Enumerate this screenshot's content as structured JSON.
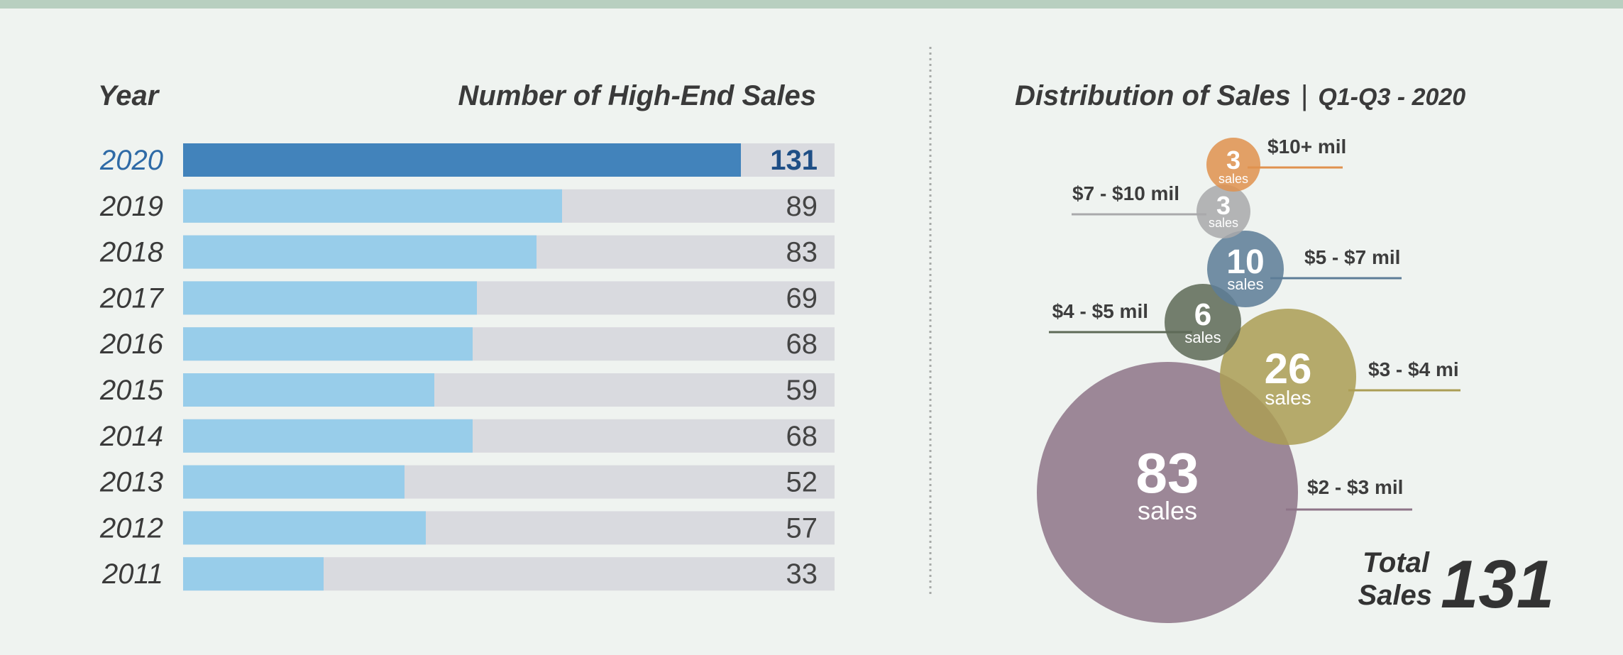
{
  "bar_panel": {
    "year_header": "Year",
    "value_header": "Number of High-End Sales"
  },
  "dist_panel": {
    "title": "Distribution of Sales",
    "separator": "|",
    "period": "Q1-Q3 - 2020",
    "unit": "sales"
  },
  "total": {
    "label_line1": "Total",
    "label_line2": "Sales",
    "value": "131"
  },
  "colors": {
    "highlight_bar": "#4283bb",
    "bar": "#98cdea",
    "track": "#d9dadf",
    "highlight_text": "#2e6aa6",
    "value_highlight": "#1f4f86",
    "text": "#3a3a3a"
  },
  "chart_data": [
    {
      "type": "bar",
      "orientation": "horizontal",
      "categories": [
        "2020",
        "2019",
        "2018",
        "2017",
        "2016",
        "2015",
        "2014",
        "2013",
        "2012",
        "2011"
      ],
      "values": [
        131,
        89,
        83,
        69,
        68,
        59,
        68,
        52,
        57,
        33
      ],
      "value_labels": [
        "131",
        "89",
        "83",
        "69",
        "68",
        "59",
        "68",
        "52",
        "57",
        "33"
      ],
      "highlight": "2020",
      "xlabel": "Number of High-End Sales",
      "ylabel": "Year",
      "xlim": [
        0,
        153
      ],
      "grid": false
    },
    {
      "type": "bubble",
      "bubbles": [
        {
          "range": "$10+ mil",
          "count": 3,
          "count_label": "3",
          "color": "#e0924f"
        },
        {
          "range": "$7 - $10 mil",
          "count": 3,
          "count_label": "3",
          "color": "#a9a9ab"
        },
        {
          "range": "$5 - $7 mil",
          "count": 10,
          "count_label": "10",
          "color": "#5d7d97"
        },
        {
          "range": "$4 - $5 mil",
          "count": 6,
          "count_label": "6",
          "color": "#5e6a57"
        },
        {
          "range": "$3 - $4 mi",
          "count": 26,
          "count_label": "26",
          "color": "#ab9d55"
        },
        {
          "range": "$2 - $3 mil",
          "count": 83,
          "count_label": "83",
          "color": "#8e7488"
        }
      ],
      "total": 131
    }
  ]
}
